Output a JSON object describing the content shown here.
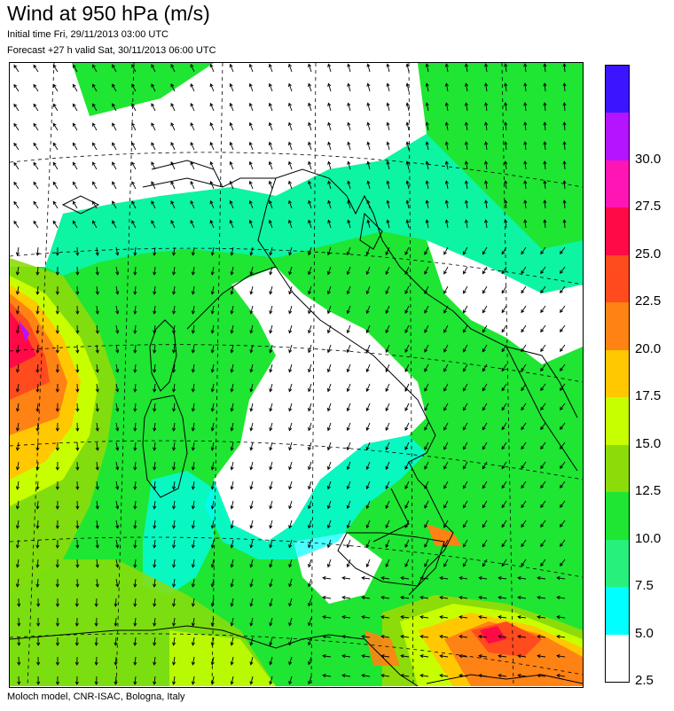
{
  "header": {
    "title": "Wind at 950 hPa (m/s)",
    "initial_time": "Initial time  Fri, 29/11/2013 03:00 UTC",
    "forecast": "Forecast +27 h valid  Sat, 30/11/2013 06:00 UTC"
  },
  "footer": {
    "credit": "Moloch model, CNR-ISAC, Bologna, Italy"
  },
  "legend": {
    "unit": "m/s",
    "levels": [
      {
        "value": "",
        "color": "#3c14ff"
      },
      {
        "value": "30.0",
        "color": "#b414ff"
      },
      {
        "value": "27.5",
        "color": "#ff14b4"
      },
      {
        "value": "25.0",
        "color": "#ff0a46"
      },
      {
        "value": "22.5",
        "color": "#ff4b1e"
      },
      {
        "value": "20.0",
        "color": "#ff8214"
      },
      {
        "value": "17.5",
        "color": "#ffc800"
      },
      {
        "value": "15.0",
        "color": "#c8ff00"
      },
      {
        "value": "12.5",
        "color": "#8cdc0a"
      },
      {
        "value": "10.0",
        "color": "#1ee632"
      },
      {
        "value": "7.5",
        "color": "#28f07d"
      },
      {
        "value": "5.0",
        "color": "#00ffff"
      },
      {
        "value": "2.5",
        "color": "#ffffff"
      }
    ]
  }
}
